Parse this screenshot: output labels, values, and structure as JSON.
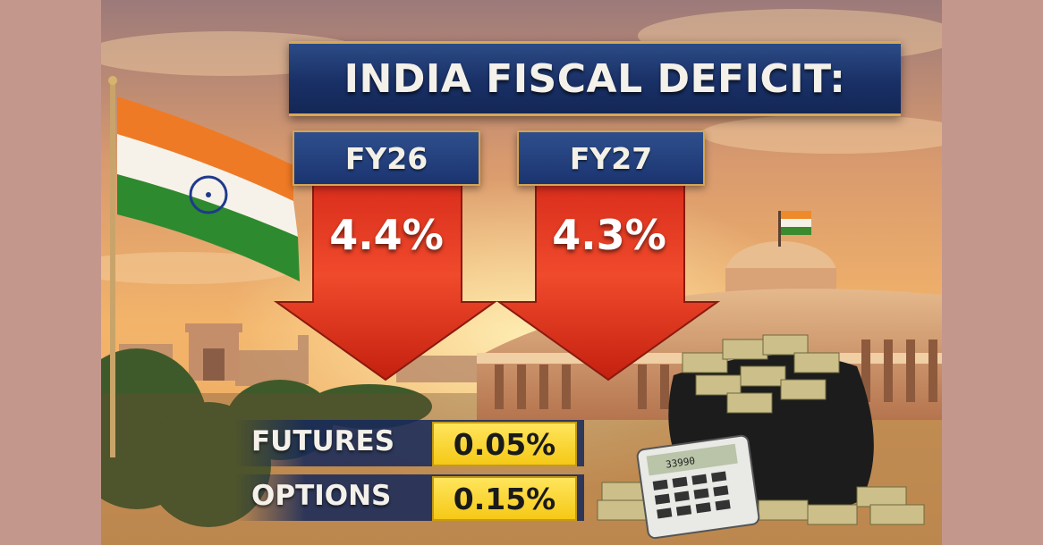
{
  "title": "INDIA FISCAL DEFICIT:",
  "deficits": [
    {
      "year": "FY26",
      "value": "4.4%"
    },
    {
      "year": "FY27",
      "value": "4.3%"
    }
  ],
  "rows": [
    {
      "label": "FUTURES",
      "value": "0.05%"
    },
    {
      "label": "OPTIONS",
      "value": "0.15%"
    }
  ],
  "calculator_display": "33990",
  "colors": {
    "banner": "#1b3470",
    "arrow": "#e0301e",
    "highlight": "#f5c916",
    "sky": "#f2a860"
  },
  "icons": [
    "india-flag-icon",
    "down-arrow-icon",
    "calculator-icon",
    "money-bag-icon"
  ]
}
